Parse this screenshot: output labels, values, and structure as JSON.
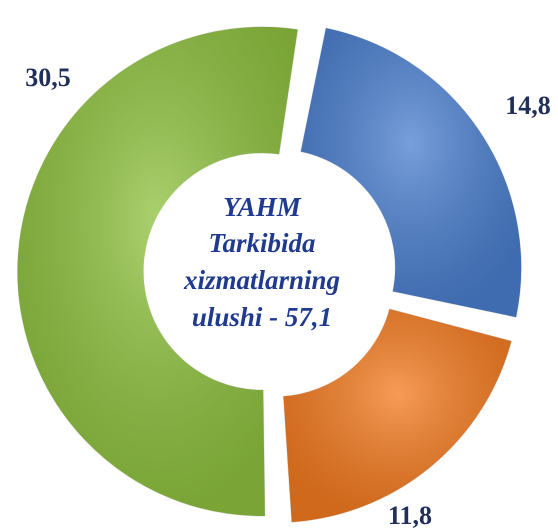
{
  "chart_data": {
    "type": "donut",
    "categories": [
      null,
      null,
      null
    ],
    "values": [
      14.8,
      11.8,
      30.5
    ],
    "value_labels": [
      "14,8",
      "11,8",
      "30,5"
    ],
    "colors": [
      "#4a7fcf",
      "#f47b20",
      "#8fc23f"
    ],
    "center_text": [
      "YAHM",
      "Tarkibida",
      "xizmatlarning",
      "ulushi - 57,1"
    ]
  }
}
